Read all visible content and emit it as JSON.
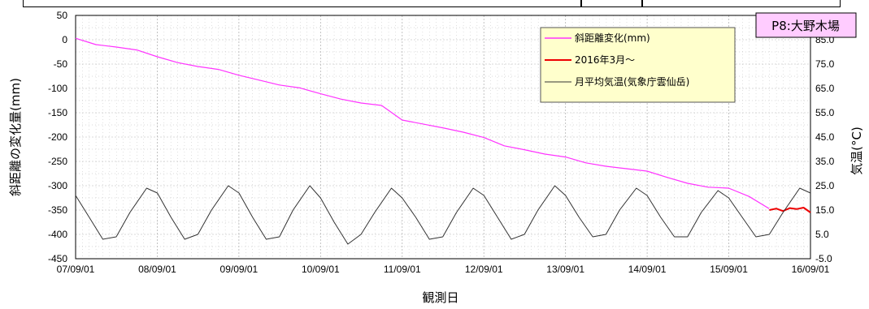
{
  "station_label": "P8:大野木場",
  "colors": {
    "distance_series": "#ff33ff",
    "recent_series": "#ee0000",
    "temperature_series": "#333333",
    "grid": "#b4b4b4",
    "legend_bg": "#ffffcc",
    "station_bg": "#ffccff"
  },
  "chart_data": {
    "type": "line",
    "xlabel": "観測日",
    "ylabel": "斜距離の変化量(mm)",
    "y2label": "気温(°C)",
    "x_tick_labels": [
      "07/09/01",
      "08/09/01",
      "09/09/01",
      "10/09/01",
      "11/09/01",
      "12/09/01",
      "13/09/01",
      "14/09/01",
      "15/09/01",
      "16/09/01"
    ],
    "x_range": [
      "2007-09-01",
      "2016-09-01"
    ],
    "y_tick_labels": [
      "50",
      "0",
      "-50",
      "-100",
      "-150",
      "-200",
      "-250",
      "-300",
      "-350",
      "-400",
      "-450"
    ],
    "ylim": [
      -450,
      50
    ],
    "y2_tick_labels": [
      "85.0",
      "75.0",
      "65.0",
      "55.0",
      "45.0",
      "35.0",
      "25.0",
      "15.0",
      "5.0",
      "-5.0"
    ],
    "y2lim": [
      -5,
      95
    ],
    "grid": true,
    "legend_position": "top-right",
    "series": [
      {
        "name": "斜距離変化(mm)",
        "axis": "left",
        "x": [
          "2007-09-01",
          "2007-12-01",
          "2008-03-01",
          "2008-06-01",
          "2008-09-01",
          "2008-12-01",
          "2009-03-01",
          "2009-06-01",
          "2009-09-01",
          "2009-12-01",
          "2010-03-01",
          "2010-06-01",
          "2010-09-01",
          "2010-12-01",
          "2011-03-01",
          "2011-06-01",
          "2011-09-01",
          "2011-12-01",
          "2012-03-01",
          "2012-06-01",
          "2012-09-01",
          "2012-12-01",
          "2013-03-01",
          "2013-06-01",
          "2013-09-01",
          "2013-12-01",
          "2014-03-01",
          "2014-06-01",
          "2014-09-01",
          "2014-12-01",
          "2015-03-01",
          "2015-06-01",
          "2015-09-01",
          "2015-12-01",
          "2016-02-29"
        ],
        "y": [
          3,
          -10,
          -15,
          -21,
          -35,
          -47,
          -55,
          -61,
          -73,
          -83,
          -93,
          -99,
          -111,
          -122,
          -130,
          -135,
          -165,
          -173,
          -181,
          -190,
          -201,
          -218,
          -226,
          -235,
          -241,
          -253,
          -260,
          -265,
          -270,
          -283,
          -295,
          -303,
          -305,
          -322,
          -347
        ]
      },
      {
        "name": "2016年3月～",
        "axis": "left",
        "x": [
          "2016-03-01",
          "2016-04-01",
          "2016-05-01",
          "2016-06-01",
          "2016-07-01",
          "2016-08-01",
          "2016-09-01"
        ],
        "y": [
          -350,
          -347,
          -352,
          -346,
          -348,
          -345,
          -355
        ]
      },
      {
        "name": "月平均気温(気象庁雲仙岳)",
        "axis": "right",
        "x": [
          "2007-09-01",
          "2007-11-01",
          "2008-01-01",
          "2008-03-01",
          "2008-05-01",
          "2008-07-15",
          "2008-09-01",
          "2008-11-01",
          "2009-01-01",
          "2009-03-01",
          "2009-05-01",
          "2009-07-15",
          "2009-09-01",
          "2009-11-01",
          "2010-01-01",
          "2010-03-01",
          "2010-05-01",
          "2010-07-15",
          "2010-09-01",
          "2010-11-01",
          "2011-01-01",
          "2011-03-01",
          "2011-05-01",
          "2011-07-15",
          "2011-09-01",
          "2011-11-01",
          "2012-01-01",
          "2012-03-01",
          "2012-05-01",
          "2012-07-15",
          "2012-09-01",
          "2012-11-01",
          "2013-01-01",
          "2013-03-01",
          "2013-05-01",
          "2013-07-15",
          "2013-09-01",
          "2013-11-01",
          "2014-01-01",
          "2014-03-01",
          "2014-05-01",
          "2014-07-15",
          "2014-09-01",
          "2014-11-01",
          "2015-01-01",
          "2015-03-01",
          "2015-05-01",
          "2015-07-15",
          "2015-09-01",
          "2015-11-01",
          "2016-01-01",
          "2016-03-01",
          "2016-05-01",
          "2016-07-15",
          "2016-09-01"
        ],
        "y": [
          21,
          12,
          3,
          4,
          14,
          24,
          22,
          12,
          3,
          5,
          15,
          25,
          22,
          12,
          3,
          4,
          15,
          25,
          20,
          10,
          1,
          5,
          14,
          24,
          20,
          12,
          3,
          4,
          14,
          24,
          21,
          12,
          3,
          5,
          15,
          25,
          21,
          12,
          4,
          5,
          15,
          24,
          21,
          12,
          4,
          4,
          14,
          23,
          20,
          12,
          4,
          5,
          14,
          24,
          22
        ]
      }
    ]
  }
}
